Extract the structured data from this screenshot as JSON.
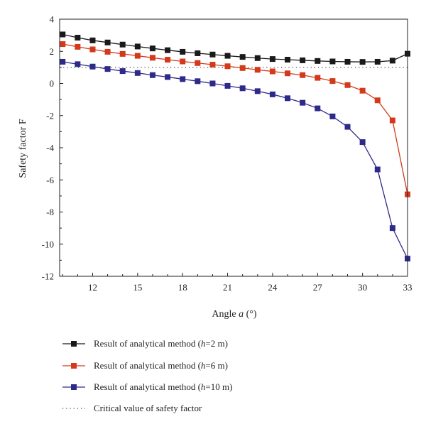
{
  "chart_data": {
    "type": "line",
    "xlabel_prefix": "Angle ",
    "xlabel_var": "a",
    "xlabel_suffix": " (°)",
    "ylabel": "Safety factor F",
    "xlim": [
      9.8,
      33
    ],
    "ylim": [
      -12,
      4
    ],
    "xticks": [
      12,
      15,
      18,
      21,
      24,
      27,
      30,
      33
    ],
    "yticks": [
      -12,
      -10,
      -8,
      -6,
      -4,
      -2,
      0,
      2,
      4
    ],
    "x": [
      10,
      11,
      12,
      13,
      14,
      15,
      16,
      17,
      18,
      19,
      20,
      21,
      22,
      23,
      24,
      25,
      26,
      27,
      28,
      29,
      30,
      31,
      32,
      33
    ],
    "series": [
      {
        "key": "h2",
        "color": "#1a1a1a",
        "marker": "square",
        "values": [
          3.05,
          2.85,
          2.68,
          2.55,
          2.42,
          2.3,
          2.18,
          2.07,
          1.97,
          1.88,
          1.8,
          1.72,
          1.65,
          1.58,
          1.52,
          1.48,
          1.44,
          1.4,
          1.37,
          1.35,
          1.34,
          1.35,
          1.42,
          1.85
        ]
      },
      {
        "key": "h6",
        "color": "#d33a1c",
        "marker": "square",
        "values": [
          2.45,
          2.28,
          2.12,
          1.97,
          1.84,
          1.72,
          1.6,
          1.48,
          1.37,
          1.27,
          1.17,
          1.07,
          0.96,
          0.85,
          0.75,
          0.63,
          0.52,
          0.35,
          0.15,
          -0.1,
          -0.45,
          -1.05,
          -2.3,
          -6.9
        ]
      },
      {
        "key": "h10",
        "color": "#2e2a8a",
        "marker": "square",
        "values": [
          1.35,
          1.2,
          1.05,
          0.9,
          0.77,
          0.65,
          0.52,
          0.4,
          0.27,
          0.14,
          0.0,
          -0.15,
          -0.3,
          -0.48,
          -0.68,
          -0.92,
          -1.2,
          -1.55,
          -2.05,
          -2.7,
          -3.65,
          -5.35,
          -9.0,
          -10.9
        ]
      }
    ],
    "critical": {
      "y": 1.0,
      "color": "#444444"
    },
    "legend": {
      "placement": "bottom",
      "entries": [
        {
          "prefix": "Result of analytical method (",
          "var": "h",
          "suffix": "=2 m)"
        },
        {
          "prefix": "Result of analytical method (",
          "var": "h",
          "suffix": "=6 m)"
        },
        {
          "prefix": "Result of analytical method (",
          "var": "h",
          "suffix": "=10 m)"
        },
        {
          "text": "Critical value of safety factor"
        }
      ]
    }
  }
}
